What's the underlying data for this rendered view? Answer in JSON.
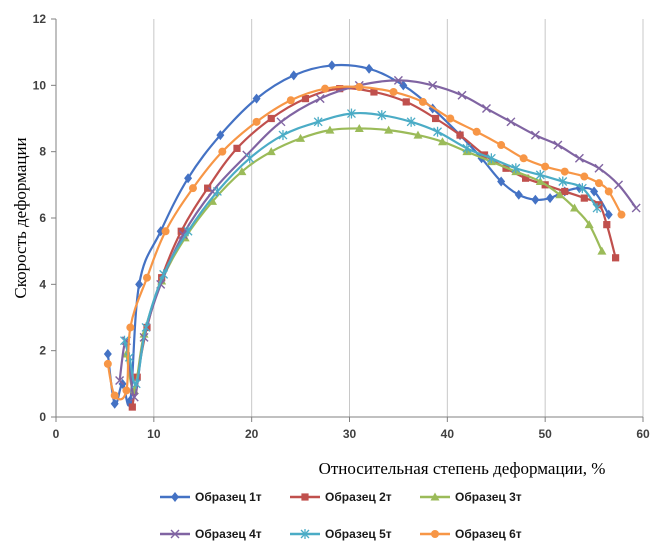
{
  "chart_data": {
    "type": "line",
    "title": "",
    "xlabel": "Относительная степень деформации, %",
    "ylabel": "Скорость деформации",
    "xlim": [
      0,
      60
    ],
    "ylim": [
      0,
      12
    ],
    "x_ticks": [
      "0",
      "10",
      "20",
      "30",
      "40",
      "50",
      "60"
    ],
    "y_ticks": [
      "0",
      "2",
      "4",
      "6",
      "8",
      "10",
      "12"
    ],
    "grid": "vertical",
    "legend_position": "bottom",
    "series": [
      {
        "name": "Образец 1т",
        "color": "#4472C4",
        "marker": "diamond",
        "points": [
          [
            5.3,
            1.9
          ],
          [
            6.0,
            0.4
          ],
          [
            6.8,
            1.0
          ],
          [
            7.6,
            0.5
          ],
          [
            8.5,
            4.0
          ],
          [
            10.7,
            5.6
          ],
          [
            13.5,
            7.2
          ],
          [
            16.8,
            8.5
          ],
          [
            20.5,
            9.6
          ],
          [
            24.3,
            10.3
          ],
          [
            28.2,
            10.6
          ],
          [
            32.0,
            10.5
          ],
          [
            35.5,
            10.0
          ],
          [
            38.5,
            9.3
          ],
          [
            41.3,
            8.5
          ],
          [
            43.5,
            7.8
          ],
          [
            45.5,
            7.1
          ],
          [
            47.3,
            6.7
          ],
          [
            49.0,
            6.55
          ],
          [
            50.5,
            6.6
          ],
          [
            52.0,
            6.8
          ],
          [
            53.5,
            6.9
          ],
          [
            55.0,
            6.8
          ],
          [
            56.5,
            6.1
          ]
        ]
      },
      {
        "name": "Образец 2т",
        "color": "#C0504D",
        "marker": "square",
        "points": [
          [
            7.8,
            0.3
          ],
          [
            8.3,
            1.2
          ],
          [
            9.3,
            2.7
          ],
          [
            10.8,
            4.2
          ],
          [
            12.8,
            5.6
          ],
          [
            15.5,
            6.9
          ],
          [
            18.5,
            8.1
          ],
          [
            22.0,
            9.0
          ],
          [
            25.5,
            9.6
          ],
          [
            29.0,
            9.9
          ],
          [
            32.5,
            9.8
          ],
          [
            35.8,
            9.5
          ],
          [
            38.8,
            9.0
          ],
          [
            41.3,
            8.5
          ],
          [
            43.8,
            7.9
          ],
          [
            46.0,
            7.5
          ],
          [
            48.0,
            7.2
          ],
          [
            50.0,
            7.0
          ],
          [
            52.0,
            6.8
          ],
          [
            54.0,
            6.6
          ],
          [
            55.5,
            6.4
          ],
          [
            56.3,
            5.8
          ],
          [
            57.2,
            4.8
          ]
        ]
      },
      {
        "name": "Образец 3т",
        "color": "#9BBB59",
        "marker": "triangle",
        "points": [
          [
            7.2,
            1.9
          ],
          [
            8.0,
            0.8
          ],
          [
            9.0,
            2.5
          ],
          [
            10.8,
            4.1
          ],
          [
            13.2,
            5.4
          ],
          [
            16.0,
            6.5
          ],
          [
            19.0,
            7.4
          ],
          [
            22.0,
            8.0
          ],
          [
            25.0,
            8.4
          ],
          [
            28.0,
            8.65
          ],
          [
            31.0,
            8.7
          ],
          [
            34.0,
            8.65
          ],
          [
            37.0,
            8.5
          ],
          [
            39.5,
            8.3
          ],
          [
            42.0,
            8.0
          ],
          [
            44.5,
            7.7
          ],
          [
            47.0,
            7.4
          ],
          [
            49.5,
            7.1
          ],
          [
            51.5,
            6.7
          ],
          [
            53.0,
            6.3
          ],
          [
            54.5,
            5.8
          ],
          [
            55.8,
            5.0
          ]
        ]
      },
      {
        "name": "Образец 4т",
        "color": "#8064A2",
        "marker": "x",
        "points": [
          [
            6.5,
            1.1
          ],
          [
            7.2,
            2.3
          ],
          [
            8.0,
            0.6
          ],
          [
            9.0,
            2.4
          ],
          [
            10.7,
            4.0
          ],
          [
            13.0,
            5.5
          ],
          [
            16.0,
            6.8
          ],
          [
            19.5,
            7.9
          ],
          [
            23.0,
            8.9
          ],
          [
            27.0,
            9.6
          ],
          [
            31.0,
            10.0
          ],
          [
            35.0,
            10.15
          ],
          [
            38.5,
            10.0
          ],
          [
            41.5,
            9.7
          ],
          [
            44.0,
            9.3
          ],
          [
            46.5,
            8.9
          ],
          [
            49.0,
            8.5
          ],
          [
            51.3,
            8.2
          ],
          [
            53.5,
            7.8
          ],
          [
            55.5,
            7.5
          ],
          [
            57.5,
            7.0
          ],
          [
            59.3,
            6.3
          ]
        ]
      },
      {
        "name": "Образец 5т",
        "color": "#4BACC6",
        "marker": "star",
        "points": [
          [
            7.0,
            2.3
          ],
          [
            7.5,
            1.8
          ],
          [
            8.2,
            1.0
          ],
          [
            9.2,
            2.7
          ],
          [
            11.0,
            4.3
          ],
          [
            13.5,
            5.6
          ],
          [
            16.5,
            6.8
          ],
          [
            19.8,
            7.8
          ],
          [
            23.2,
            8.5
          ],
          [
            26.8,
            8.9
          ],
          [
            30.2,
            9.15
          ],
          [
            33.3,
            9.1
          ],
          [
            36.3,
            8.9
          ],
          [
            39.0,
            8.6
          ],
          [
            42.0,
            8.1
          ],
          [
            44.5,
            7.8
          ],
          [
            47.0,
            7.5
          ],
          [
            49.5,
            7.3
          ],
          [
            51.8,
            7.1
          ],
          [
            53.8,
            6.9
          ],
          [
            55.3,
            6.3
          ]
        ]
      },
      {
        "name": "Образец 6т",
        "color": "#F79646",
        "marker": "circle",
        "points": [
          [
            5.3,
            1.6
          ],
          [
            6.0,
            0.65
          ],
          [
            7.2,
            0.8
          ],
          [
            7.6,
            2.7
          ],
          [
            9.3,
            4.2
          ],
          [
            11.2,
            5.6
          ],
          [
            14.0,
            6.9
          ],
          [
            17.0,
            8.0
          ],
          [
            20.5,
            8.9
          ],
          [
            24.0,
            9.55
          ],
          [
            27.5,
            9.9
          ],
          [
            31.0,
            9.95
          ],
          [
            34.5,
            9.8
          ],
          [
            37.5,
            9.5
          ],
          [
            40.3,
            9.0
          ],
          [
            43.0,
            8.6
          ],
          [
            45.5,
            8.2
          ],
          [
            47.8,
            7.8
          ],
          [
            50.0,
            7.55
          ],
          [
            52.0,
            7.4
          ],
          [
            54.0,
            7.25
          ],
          [
            55.5,
            7.05
          ],
          [
            56.5,
            6.8
          ],
          [
            57.8,
            6.1
          ]
        ]
      }
    ]
  }
}
